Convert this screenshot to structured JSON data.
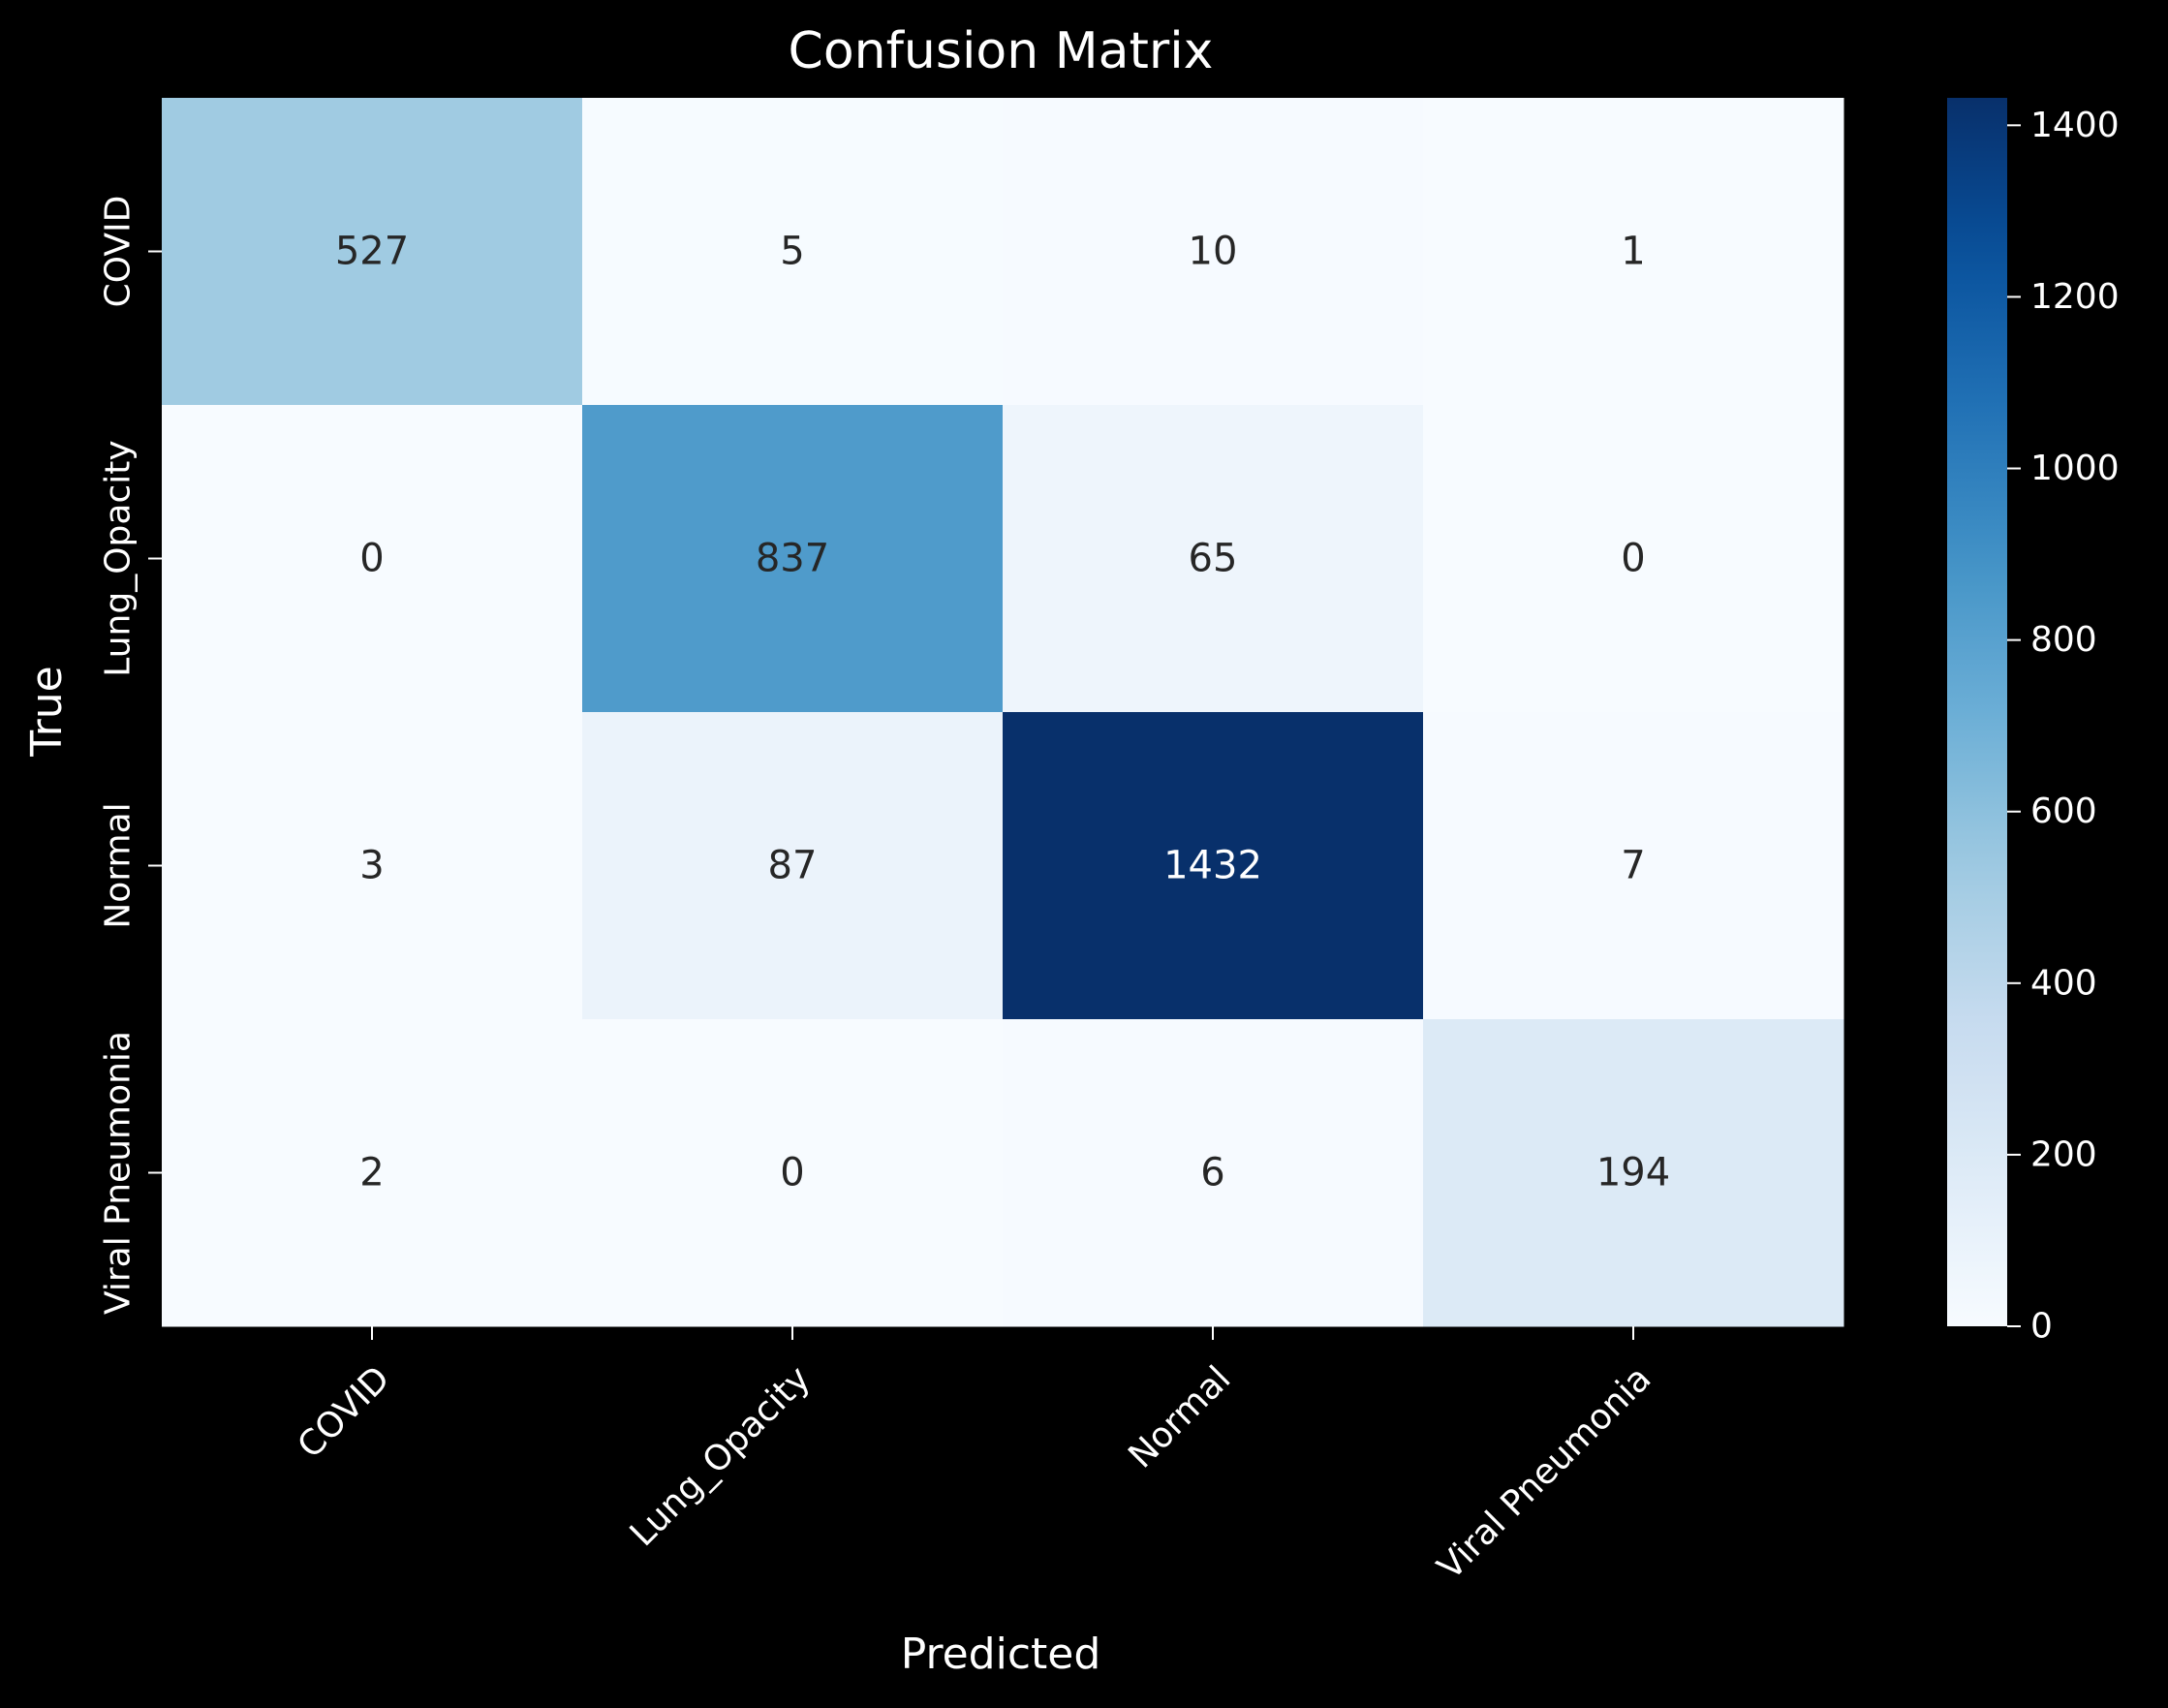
{
  "chart_data": {
    "type": "heatmap",
    "title": "Confusion Matrix",
    "xlabel": "Predicted",
    "ylabel": "True",
    "x_categories": [
      "COVID",
      "Lung_Opacity",
      "Normal",
      "Viral Pneumonia"
    ],
    "y_categories": [
      "COVID",
      "Lung_Opacity",
      "Normal",
      "Viral Pneumonia"
    ],
    "values": [
      [
        527,
        5,
        10,
        1
      ],
      [
        0,
        837,
        65,
        0
      ],
      [
        3,
        87,
        1432,
        7
      ],
      [
        2,
        0,
        6,
        194
      ]
    ],
    "colorbar": {
      "colormap": "Blues",
      "range": [
        0,
        1432
      ],
      "ticks": [
        0,
        200,
        400,
        600,
        800,
        1000,
        1200,
        1400
      ]
    },
    "colors": {
      "background": "#000000",
      "text": "#ffffff",
      "annotation_dark": "#262626",
      "annotation_light": "#ffffff"
    }
  }
}
